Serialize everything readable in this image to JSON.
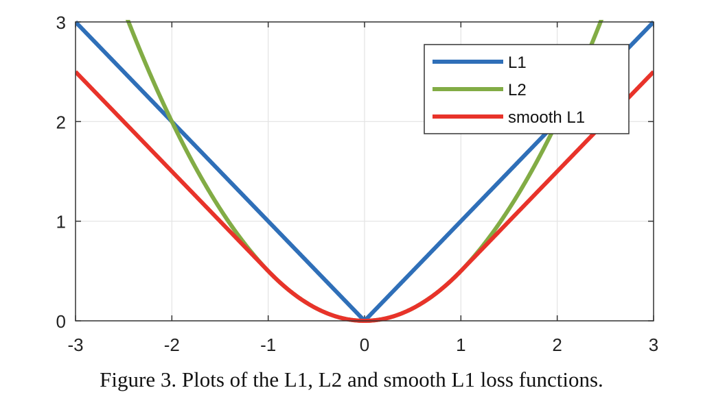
{
  "chart_data": {
    "type": "line",
    "title": "",
    "xlabel": "",
    "ylabel": "",
    "xlim": [
      -3,
      3
    ],
    "ylim": [
      0,
      3
    ],
    "xticks": [
      -3,
      -2,
      -1,
      0,
      1,
      2,
      3
    ],
    "yticks": [
      0,
      1,
      2,
      3
    ],
    "xtick_labels": [
      "-3",
      "-2",
      "-1",
      "0",
      "1",
      "2",
      "3"
    ],
    "ytick_labels": [
      "0",
      "1",
      "2",
      "3"
    ],
    "grid": true,
    "legend_position": "top-right",
    "series": [
      {
        "name": "L1",
        "color": "#2f6fb8",
        "function": "|x|",
        "x": [
          -3,
          -2,
          -1,
          0,
          1,
          2,
          3
        ],
        "y": [
          3,
          2,
          1,
          0,
          1,
          2,
          3
        ]
      },
      {
        "name": "L2",
        "color": "#82ac45",
        "function": "0.5*x^2",
        "x": [
          -2.45,
          -2,
          -1.5,
          -1,
          -0.5,
          0,
          0.5,
          1,
          1.5,
          2,
          2.45
        ],
        "y": [
          3.0,
          2.0,
          1.125,
          0.5,
          0.125,
          0,
          0.125,
          0.5,
          1.125,
          2.0,
          3.0
        ]
      },
      {
        "name": "smooth L1",
        "color": "#e8332a",
        "function": "0.5*x^2 if |x|<1 else |x|-0.5",
        "x": [
          -3,
          -2,
          -1,
          -0.5,
          0,
          0.5,
          1,
          2,
          3
        ],
        "y": [
          2.5,
          1.5,
          0.5,
          0.125,
          0,
          0.125,
          0.5,
          1.5,
          2.5
        ]
      }
    ]
  },
  "caption": "Figure 3. Plots of the L1, L2 and smooth L1 loss functions."
}
